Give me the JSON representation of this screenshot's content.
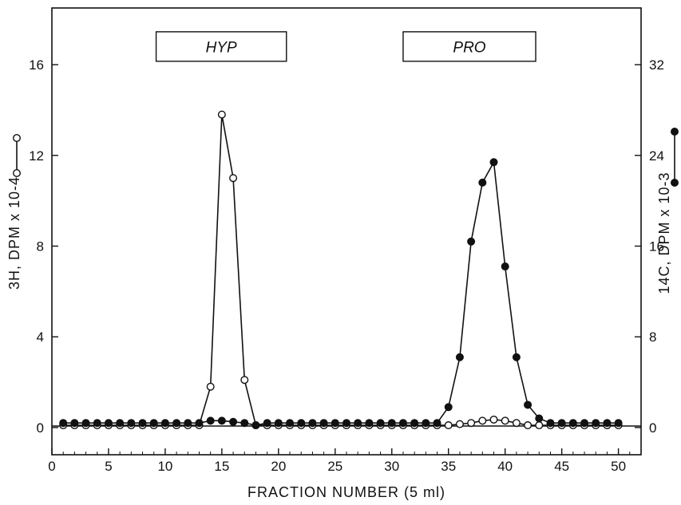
{
  "chart_data": {
    "type": "line",
    "xlabel": "FRACTION NUMBER (5 ml)",
    "ylabel_left": "3H, DPM x 10-4",
    "ylabel_right": "14C, DPM x 10-3",
    "xlim": [
      0,
      52
    ],
    "xticks": [
      0,
      5,
      10,
      15,
      20,
      25,
      30,
      35,
      40,
      45,
      50
    ],
    "ylim_left": [
      -1.2,
      18.5
    ],
    "yticks_left": [
      0,
      4,
      8,
      12,
      16
    ],
    "ylim_right": [
      -2.4,
      37
    ],
    "yticks_right": [
      0,
      8,
      16,
      24,
      32
    ],
    "grid": false,
    "annotations": [
      {
        "label": "HYP",
        "x_start": 9.2,
        "x_end": 20.7,
        "y_low": 16.15,
        "y_high": 17.45
      },
      {
        "label": "PRO",
        "x_start": 31,
        "x_end": 42.7,
        "y_low": 16.15,
        "y_high": 17.45
      }
    ],
    "series": [
      {
        "marker": "open-circle",
        "axis": "left",
        "points": [
          [
            1,
            0.1
          ],
          [
            2,
            0.1
          ],
          [
            3,
            0.1
          ],
          [
            4,
            0.1
          ],
          [
            5,
            0.1
          ],
          [
            6,
            0.1
          ],
          [
            7,
            0.1
          ],
          [
            8,
            0.1
          ],
          [
            9,
            0.1
          ],
          [
            10,
            0.1
          ],
          [
            11,
            0.1
          ],
          [
            12,
            0.1
          ],
          [
            13,
            0.1
          ],
          [
            14,
            1.8
          ],
          [
            15,
            13.8
          ],
          [
            16,
            11.0
          ],
          [
            17,
            2.1
          ],
          [
            18,
            0.1
          ],
          [
            19,
            0.1
          ],
          [
            20,
            0.1
          ],
          [
            21,
            0.1
          ],
          [
            22,
            0.1
          ],
          [
            23,
            0.1
          ],
          [
            24,
            0.1
          ],
          [
            25,
            0.1
          ],
          [
            26,
            0.1
          ],
          [
            27,
            0.1
          ],
          [
            28,
            0.1
          ],
          [
            29,
            0.1
          ],
          [
            30,
            0.1
          ],
          [
            31,
            0.1
          ],
          [
            32,
            0.1
          ],
          [
            33,
            0.1
          ],
          [
            34,
            0.1
          ],
          [
            35,
            0.1
          ],
          [
            36,
            0.15
          ],
          [
            37,
            0.2
          ],
          [
            38,
            0.3
          ],
          [
            39,
            0.35
          ],
          [
            40,
            0.3
          ],
          [
            41,
            0.2
          ],
          [
            42,
            0.1
          ],
          [
            43,
            0.1
          ],
          [
            44,
            0.1
          ],
          [
            45,
            0.1
          ],
          [
            46,
            0.1
          ],
          [
            47,
            0.1
          ],
          [
            48,
            0.1
          ],
          [
            49,
            0.1
          ],
          [
            50,
            0.1
          ]
        ]
      },
      {
        "marker": "filled-circle",
        "axis": "right",
        "points": [
          [
            1,
            0.4
          ],
          [
            2,
            0.4
          ],
          [
            3,
            0.4
          ],
          [
            4,
            0.4
          ],
          [
            5,
            0.4
          ],
          [
            6,
            0.4
          ],
          [
            7,
            0.4
          ],
          [
            8,
            0.4
          ],
          [
            9,
            0.4
          ],
          [
            10,
            0.4
          ],
          [
            11,
            0.4
          ],
          [
            12,
            0.4
          ],
          [
            13,
            0.4
          ],
          [
            14,
            0.6
          ],
          [
            15,
            0.6
          ],
          [
            16,
            0.5
          ],
          [
            17,
            0.4
          ],
          [
            18,
            0.2
          ],
          [
            19,
            0.4
          ],
          [
            20,
            0.4
          ],
          [
            21,
            0.4
          ],
          [
            22,
            0.4
          ],
          [
            23,
            0.4
          ],
          [
            24,
            0.4
          ],
          [
            25,
            0.4
          ],
          [
            26,
            0.4
          ],
          [
            27,
            0.4
          ],
          [
            28,
            0.4
          ],
          [
            29,
            0.4
          ],
          [
            30,
            0.4
          ],
          [
            31,
            0.4
          ],
          [
            32,
            0.4
          ],
          [
            33,
            0.4
          ],
          [
            34,
            0.4
          ],
          [
            35,
            1.8
          ],
          [
            36,
            6.2
          ],
          [
            37,
            16.4
          ],
          [
            38,
            21.6
          ],
          [
            39,
            23.4
          ],
          [
            40,
            14.2
          ],
          [
            41,
            6.2
          ],
          [
            42,
            2.0
          ],
          [
            43,
            0.8
          ],
          [
            44,
            0.4
          ],
          [
            45,
            0.4
          ],
          [
            46,
            0.4
          ],
          [
            47,
            0.4
          ],
          [
            48,
            0.4
          ],
          [
            49,
            0.4
          ],
          [
            50,
            0.4
          ]
        ]
      }
    ]
  }
}
